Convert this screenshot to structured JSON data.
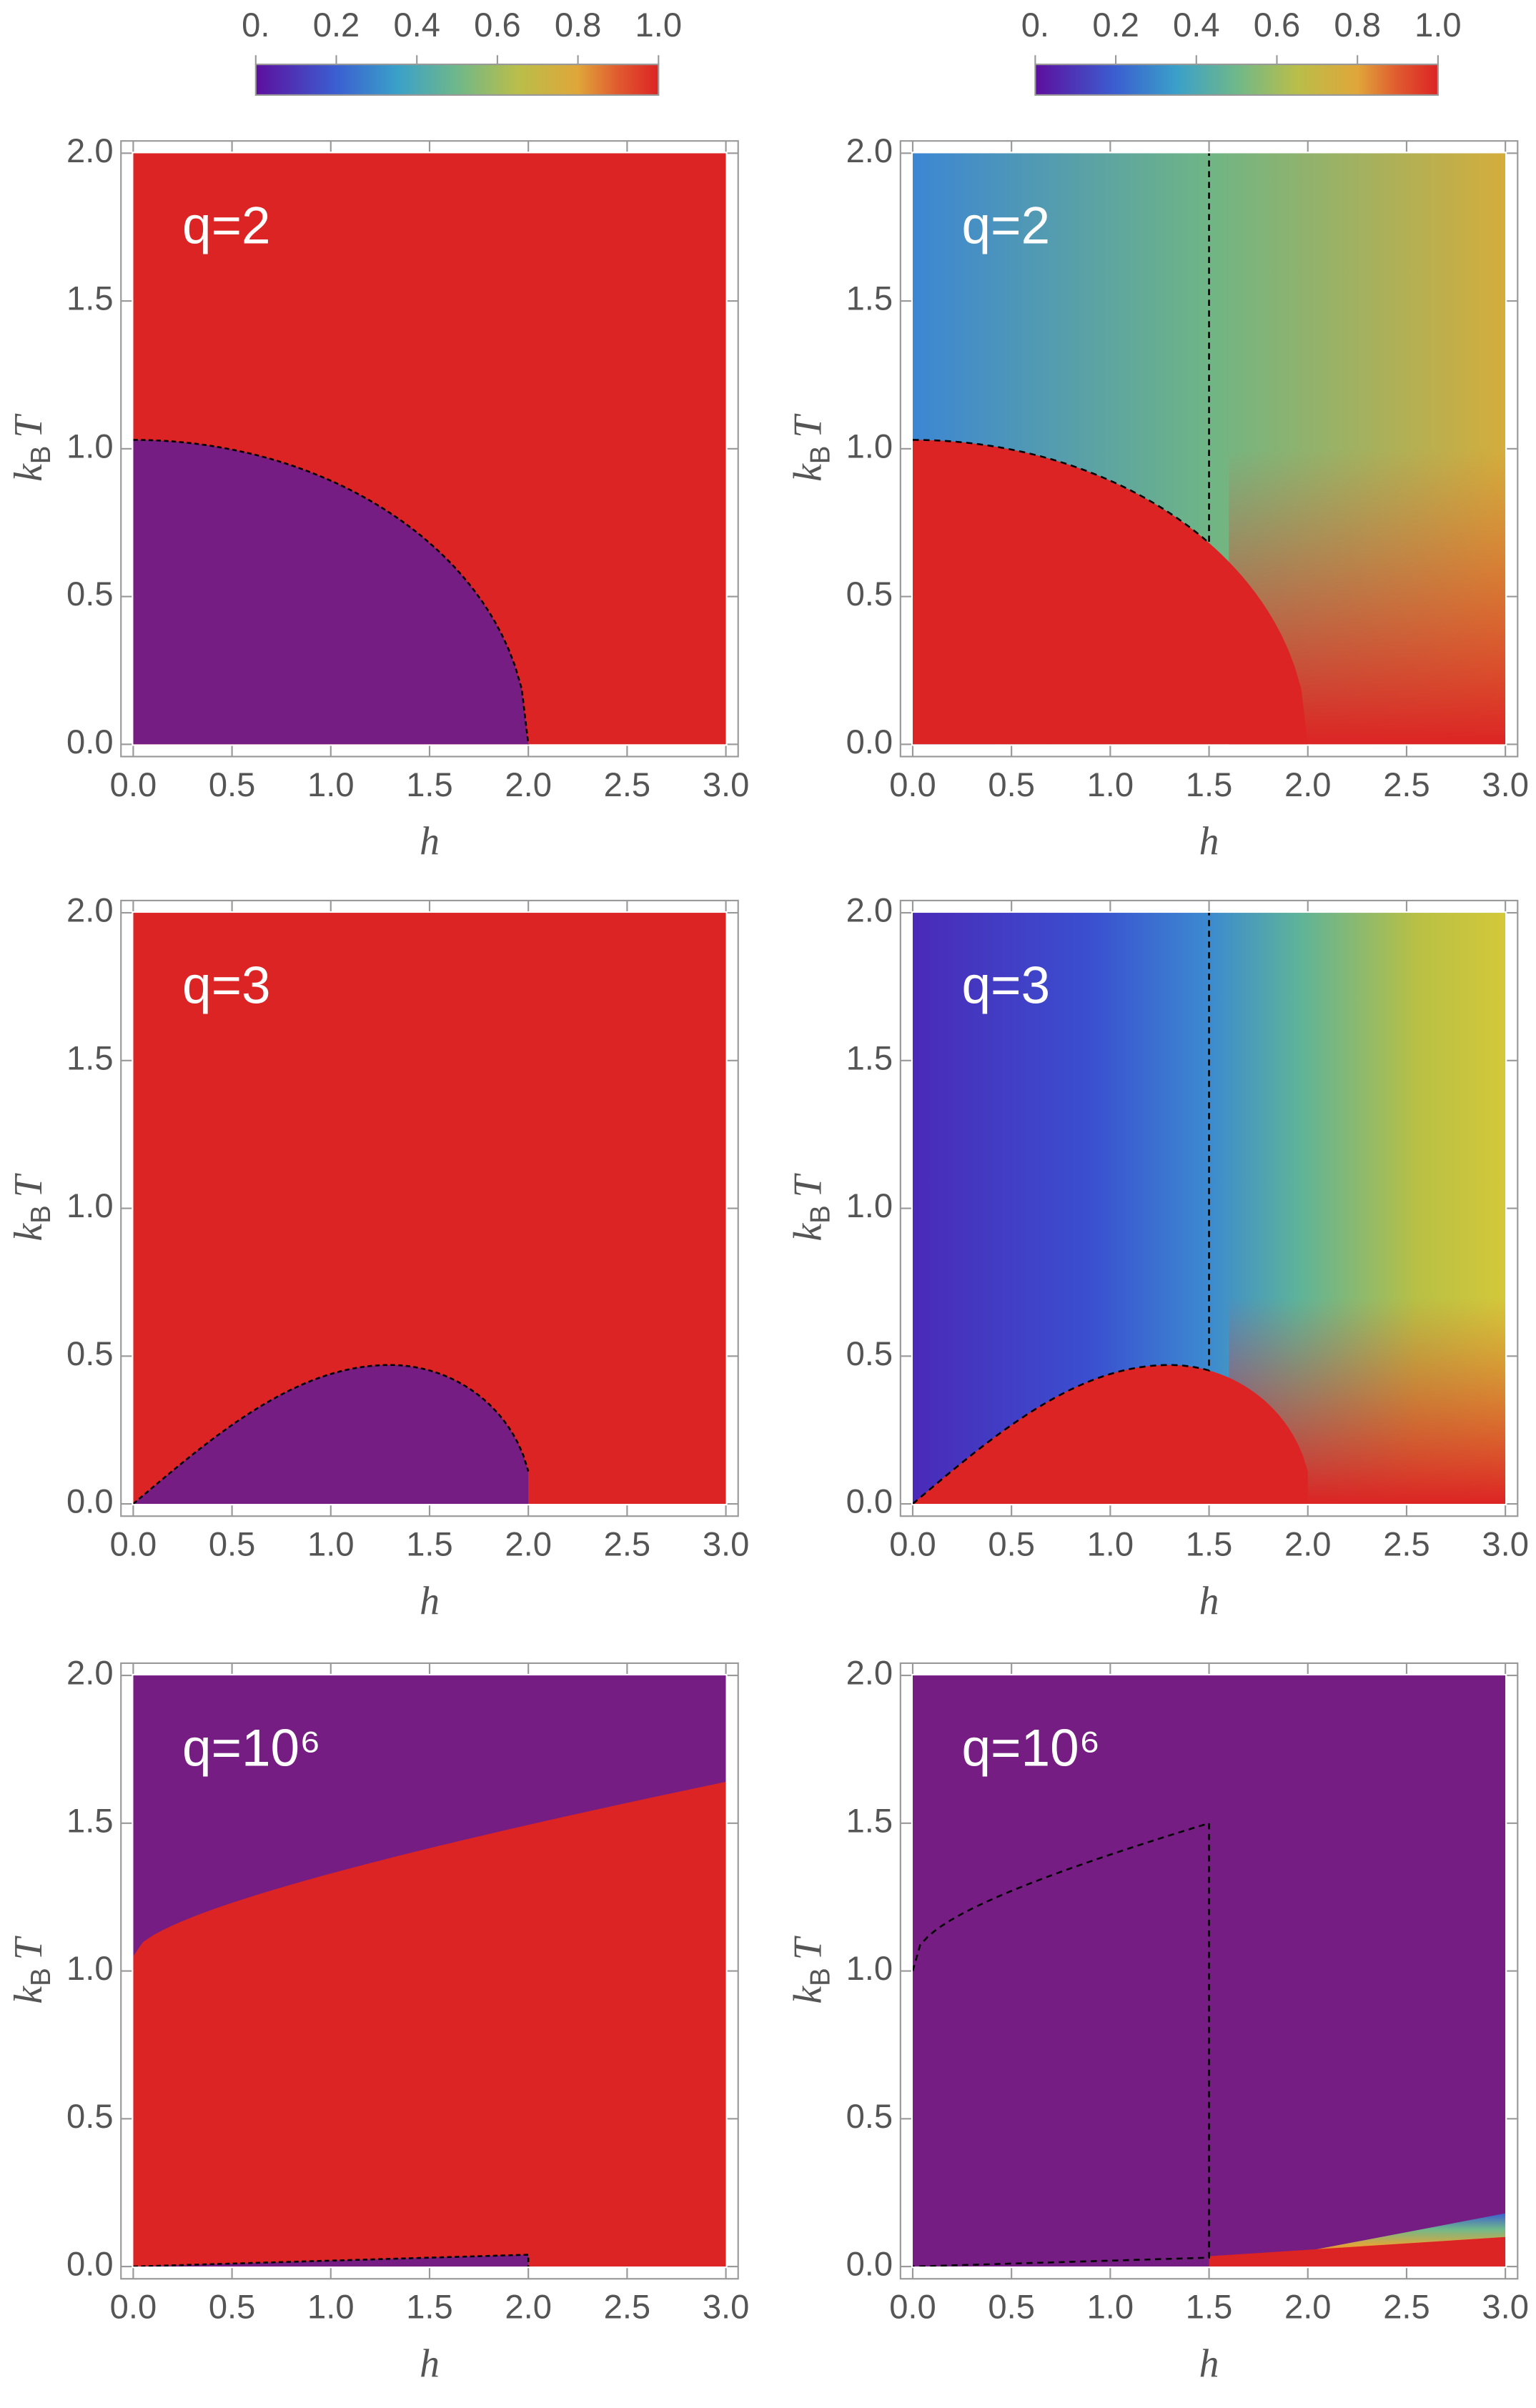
{
  "chart_data": [
    {
      "type": "heatmap",
      "annotation": "q=2",
      "xlabel": "h",
      "ylabel": [
        "k",
        "B",
        "T"
      ],
      "xlim": [
        0,
        3
      ],
      "ylim": [
        0,
        2
      ],
      "xticks": [
        {
          "value": 0,
          "label": "0.0"
        },
        0.5,
        {
          "value": 1,
          "label": "1.0"
        },
        1.5,
        {
          "value": 2,
          "label": "2.0"
        },
        2.5,
        {
          "value": 3,
          "label": "3.0"
        }
      ],
      "yticks": [
        {
          "value": 0,
          "label": "0.0"
        },
        0.5,
        {
          "value": 1,
          "label": "1.0"
        },
        1.5,
        {
          "value": 2,
          "label": "2.0"
        }
      ],
      "colorbar": {
        "lim": [
          0,
          1
        ],
        "ticks": [
          {
            "value": 0,
            "label": "0."
          },
          0.2,
          0.4,
          0.6,
          0.8,
          {
            "value": 1,
            "label": "1.0"
          }
        ]
      }
    },
    {
      "type": "heatmap",
      "annotation": "q=2",
      "xlabel": "h",
      "ylabel": [
        "k",
        "B",
        "T"
      ],
      "xlim": [
        0,
        3
      ],
      "ylim": [
        0,
        2
      ],
      "xticks": [
        {
          "value": 0,
          "label": "0.0"
        },
        0.5,
        {
          "value": 1,
          "label": "1.0"
        },
        1.5,
        {
          "value": 2,
          "label": "2.0"
        },
        2.5,
        {
          "value": 3,
          "label": "3.0"
        }
      ],
      "yticks": [
        {
          "value": 0,
          "label": "0.0"
        },
        0.5,
        {
          "value": 1,
          "label": "1.0"
        },
        1.5,
        {
          "value": 2,
          "label": "2.0"
        }
      ],
      "colorbar": {
        "lim": [
          0,
          1
        ],
        "ticks": [
          {
            "value": 0,
            "label": "0."
          },
          0.2,
          0.4,
          0.6,
          0.8,
          {
            "value": 1,
            "label": "1.0"
          }
        ]
      }
    },
    {
      "type": "heatmap",
      "annotation": "q=3",
      "xlabel": "h",
      "ylabel": [
        "k",
        "B",
        "T"
      ],
      "xlim": [
        0,
        3
      ],
      "ylim": [
        0,
        2
      ],
      "xticks": [
        {
          "value": 0,
          "label": "0.0"
        },
        0.5,
        {
          "value": 1,
          "label": "1.0"
        },
        1.5,
        {
          "value": 2,
          "label": "2.0"
        },
        2.5,
        {
          "value": 3,
          "label": "3.0"
        }
      ],
      "yticks": [
        {
          "value": 0,
          "label": "0.0"
        },
        0.5,
        {
          "value": 1,
          "label": "1.0"
        },
        1.5,
        {
          "value": 2,
          "label": "2.0"
        }
      ]
    },
    {
      "type": "heatmap",
      "annotation": "q=3",
      "xlabel": "h",
      "ylabel": [
        "k",
        "B",
        "T"
      ],
      "xlim": [
        0,
        3
      ],
      "ylim": [
        0,
        2
      ],
      "xticks": [
        {
          "value": 0,
          "label": "0.0"
        },
        0.5,
        {
          "value": 1,
          "label": "1.0"
        },
        1.5,
        {
          "value": 2,
          "label": "2.0"
        },
        2.5,
        {
          "value": 3,
          "label": "3.0"
        }
      ],
      "yticks": [
        {
          "value": 0,
          "label": "0.0"
        },
        0.5,
        {
          "value": 1,
          "label": "1.0"
        },
        1.5,
        {
          "value": 2,
          "label": "2.0"
        }
      ]
    },
    {
      "type": "heatmap",
      "annotation": "q=10⁶",
      "xlabel": "h",
      "ylabel": [
        "k",
        "B",
        "T"
      ],
      "xlim": [
        0,
        3
      ],
      "ylim": [
        0,
        2
      ],
      "xticks": [
        {
          "value": 0,
          "label": "0.0"
        },
        0.5,
        {
          "value": 1,
          "label": "1.0"
        },
        1.5,
        {
          "value": 2,
          "label": "2.0"
        },
        2.5,
        {
          "value": 3,
          "label": "3.0"
        }
      ],
      "yticks": [
        {
          "value": 0,
          "label": "0.0"
        },
        0.5,
        {
          "value": 1,
          "label": "1.0"
        },
        1.5,
        {
          "value": 2,
          "label": "2.0"
        }
      ]
    },
    {
      "type": "heatmap",
      "annotation": "q=10⁶",
      "xlabel": "h",
      "ylabel": [
        "k",
        "B",
        "T"
      ],
      "xlim": [
        0,
        3
      ],
      "ylim": [
        0,
        2
      ],
      "xticks": [
        {
          "value": 0,
          "label": "0.0"
        },
        0.5,
        {
          "value": 1,
          "label": "1.0"
        },
        1.5,
        {
          "value": 2,
          "label": "2.0"
        },
        2.5,
        {
          "value": 3,
          "label": "3.0"
        }
      ],
      "yticks": [
        {
          "value": 0,
          "label": "0.0"
        },
        0.5,
        {
          "value": 1,
          "label": "1.0"
        },
        1.5,
        {
          "value": 2,
          "label": "2.0"
        }
      ]
    }
  ]
}
